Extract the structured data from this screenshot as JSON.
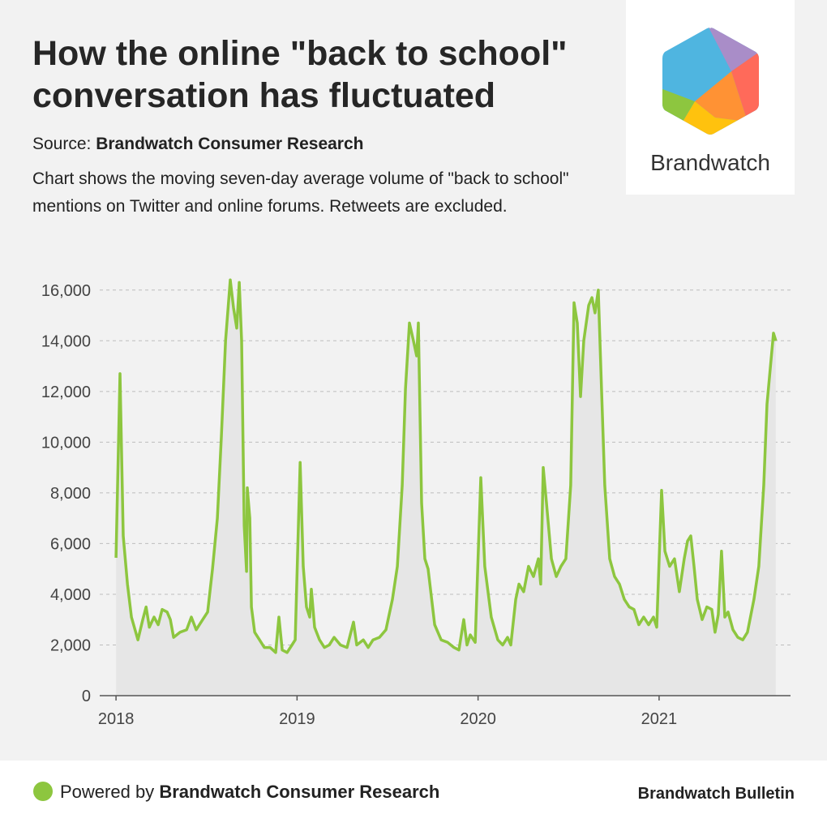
{
  "header": {
    "title": "How the online \"back to school\" conversation has fluctuated",
    "source_label": "Source:",
    "source": "Brandwatch Consumer Research",
    "description": "Chart shows the moving seven-day average volume of \"back to school\" mentions on Twitter and online forums. Retweets are excluded."
  },
  "logo": {
    "text": "Brandwatch"
  },
  "chart_data": {
    "type": "area",
    "color": "#8dc63f",
    "fill_color": "#e6e6e6",
    "grid": true,
    "xlim": [
      2017.91,
      2021.726
    ],
    "xticks": [
      2018,
      2019,
      2020,
      2021
    ],
    "ylim": [
      0,
      16600
    ],
    "yticks": [
      0,
      {
        "value": 2000,
        "label": "2,000"
      },
      {
        "value": 4000,
        "label": "4,000"
      },
      {
        "value": 6000,
        "label": "6,000"
      },
      {
        "value": 8000,
        "label": "8,000"
      },
      {
        "value": 10000,
        "label": "10,000"
      },
      {
        "value": 12000,
        "label": "12,000"
      },
      {
        "value": 14000,
        "label": "14,000"
      },
      {
        "value": 16000,
        "label": "16,000"
      }
    ],
    "x": [
      2018.0,
      2018.022,
      2018.04,
      2018.063,
      2018.085,
      2018.121,
      2018.148,
      2018.166,
      2018.184,
      2018.21,
      2018.233,
      2018.255,
      2018.282,
      2018.3,
      2018.318,
      2018.354,
      2018.39,
      2018.416,
      2018.443,
      2018.479,
      2018.506,
      2018.533,
      2018.56,
      2018.582,
      2018.605,
      2018.631,
      2018.649,
      2018.667,
      2018.681,
      2018.694,
      2018.708,
      2018.721,
      2018.725,
      2018.739,
      2018.748,
      2018.766,
      2018.793,
      2018.819,
      2018.851,
      2018.882,
      2018.9,
      2018.918,
      2018.945,
      2018.972,
      2018.99,
      2019.017,
      2019.034,
      2019.052,
      2019.07,
      2019.079,
      2019.097,
      2019.124,
      2019.151,
      2019.178,
      2019.205,
      2019.24,
      2019.276,
      2019.312,
      2019.33,
      2019.366,
      2019.393,
      2019.42,
      2019.455,
      2019.491,
      2019.527,
      2019.554,
      2019.581,
      2019.599,
      2019.621,
      2019.643,
      2019.661,
      2019.67,
      2019.688,
      2019.706,
      2019.724,
      2019.76,
      2019.796,
      2019.832,
      2019.867,
      2019.894,
      2019.921,
      2019.939,
      2019.957,
      2019.984,
      2020.015,
      2020.037,
      2020.073,
      2020.109,
      2020.136,
      2020.163,
      2020.181,
      2020.208,
      2020.226,
      2020.252,
      2020.279,
      2020.306,
      2020.333,
      2020.346,
      2020.36,
      2020.378,
      2020.405,
      2020.432,
      2020.458,
      2020.485,
      2020.512,
      2020.53,
      2020.548,
      2020.566,
      2020.584,
      2020.611,
      2020.629,
      2020.646,
      2020.664,
      2020.682,
      2020.7,
      2020.727,
      2020.754,
      2020.781,
      2020.808,
      2020.835,
      2020.861,
      2020.888,
      2020.915,
      2020.942,
      2020.969,
      2020.987,
      2021.014,
      2021.032,
      2021.058,
      2021.085,
      2021.112,
      2021.139,
      2021.157,
      2021.175,
      2021.193,
      2021.211,
      2021.238,
      2021.264,
      2021.291,
      2021.309,
      2021.327,
      2021.345,
      2021.363,
      2021.381,
      2021.408,
      2021.435,
      2021.462,
      2021.488,
      2021.524,
      2021.551,
      2021.578,
      2021.596,
      2021.614,
      2021.632,
      2021.645
    ],
    "values": [
      5440,
      12700,
      6300,
      4400,
      3100,
      2200,
      3000,
      3500,
      2700,
      3100,
      2800,
      3400,
      3300,
      3000,
      2300,
      2500,
      2600,
      3100,
      2600,
      3000,
      3300,
      5000,
      7000,
      10200,
      14000,
      16400,
      15300,
      14500,
      16300,
      14000,
      6700,
      4900,
      8200,
      7000,
      3500,
      2500,
      2200,
      1900,
      1900,
      1700,
      3100,
      1800,
      1700,
      2000,
      2200,
      9200,
      5100,
      3500,
      3100,
      4200,
      2700,
      2200,
      1900,
      2000,
      2300,
      2000,
      1900,
      2900,
      2000,
      2200,
      1900,
      2200,
      2300,
      2600,
      3800,
      5100,
      8300,
      12100,
      14700,
      14000,
      13400,
      14700,
      7600,
      5400,
      5000,
      2800,
      2200,
      2100,
      1900,
      1800,
      3000,
      2000,
      2400,
      2100,
      8600,
      5100,
      3100,
      2200,
      2000,
      2300,
      2000,
      3800,
      4400,
      4100,
      5100,
      4700,
      5400,
      4400,
      9000,
      7600,
      5400,
      4700,
      5100,
      5400,
      8300,
      15500,
      14700,
      11800,
      14000,
      15400,
      15700,
      15100,
      16000,
      12100,
      8300,
      5400,
      4700,
      4400,
      3800,
      3500,
      3400,
      2800,
      3100,
      2800,
      3100,
      2700,
      8100,
      5700,
      5100,
      5400,
      4100,
      5400,
      6100,
      6300,
      5100,
      3800,
      3000,
      3500,
      3400,
      2500,
      3200,
      5700,
      3100,
      3300,
      2600,
      2300,
      2200,
      2500,
      3800,
      5100,
      8300,
      11500,
      12900,
      14300,
      14000
    ]
  },
  "footer": {
    "powered_label": "Powered by",
    "powered_name": "Brandwatch Consumer Research",
    "brand": "Brandwatch Bulletin"
  }
}
